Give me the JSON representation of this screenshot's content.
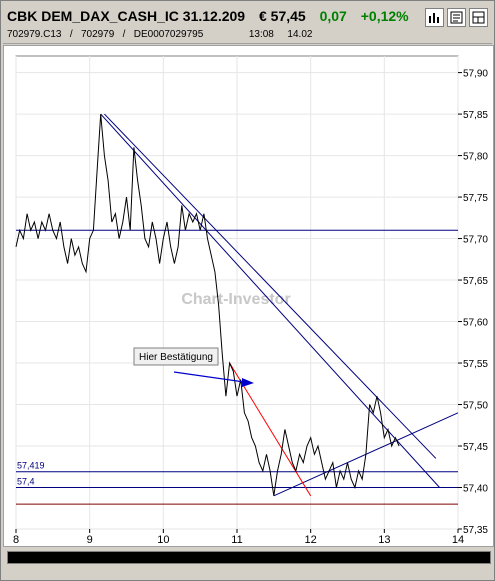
{
  "header": {
    "instrument": "CBK DEM_DAX_CASH_IC 31.12.209",
    "price": "€ 57,45",
    "change_abs": "0,07",
    "change_pct": "+0,12%",
    "codes": "702979.C13   /   702979   /   DE0007029795",
    "time1": "13:08",
    "time2": "14.02",
    "colors": {
      "positive": "#008000"
    }
  },
  "toolbar": {
    "icons": [
      "bar-chart-icon",
      "news-icon",
      "layout-icon"
    ]
  },
  "watermark": "Chart-Investor",
  "annotation": {
    "label": "Hier Bestätigung"
  },
  "chart_data": {
    "type": "line",
    "x_ticks": [
      "8",
      "9",
      "10",
      "11",
      "12",
      "13",
      "14"
    ],
    "y_ticks": [
      "57,90",
      "57,85",
      "57,80",
      "57,75",
      "57,70",
      "57,65",
      "57,60",
      "57,55",
      "57,50",
      "57,45",
      "57,40",
      "57,35"
    ],
    "xlim": [
      8,
      14
    ],
    "ylim": [
      57.35,
      57.92
    ],
    "level_labels": [
      {
        "text": "57,419",
        "y": 57.419
      },
      {
        "text": "57,4",
        "y": 57.4
      }
    ],
    "horizontal_lines": [
      {
        "y": 57.71,
        "color": "#000080"
      },
      {
        "y": 57.419,
        "color": "#000080"
      },
      {
        "y": 57.4,
        "color": "#000080"
      },
      {
        "y": 57.38,
        "color": "#800000"
      }
    ],
    "trend_lines": [
      {
        "x1": 9.15,
        "y1": 57.85,
        "x2": 13.75,
        "y2": 57.4,
        "color": "#000080"
      },
      {
        "x1": 9.2,
        "y1": 57.85,
        "x2": 13.7,
        "y2": 57.435,
        "color": "#000080"
      },
      {
        "x1": 11.5,
        "y1": 57.39,
        "x2": 14.0,
        "y2": 57.49,
        "color": "#000080"
      },
      {
        "x1": 10.9,
        "y1": 57.55,
        "x2": 12.0,
        "y2": 57.39,
        "color": "#ff0000"
      }
    ],
    "series": [
      {
        "values": [
          [
            8.0,
            57.69
          ],
          [
            8.05,
            57.71
          ],
          [
            8.1,
            57.7
          ],
          [
            8.15,
            57.73
          ],
          [
            8.2,
            57.71
          ],
          [
            8.25,
            57.72
          ],
          [
            8.3,
            57.7
          ],
          [
            8.35,
            57.72
          ],
          [
            8.4,
            57.71
          ],
          [
            8.45,
            57.73
          ],
          [
            8.5,
            57.71
          ],
          [
            8.55,
            57.7
          ],
          [
            8.6,
            57.72
          ],
          [
            8.65,
            57.69
          ],
          [
            8.7,
            57.67
          ],
          [
            8.75,
            57.7
          ],
          [
            8.8,
            57.68
          ],
          [
            8.85,
            57.69
          ],
          [
            8.9,
            57.67
          ],
          [
            8.95,
            57.66
          ],
          [
            9.0,
            57.7
          ],
          [
            9.05,
            57.71
          ],
          [
            9.1,
            57.78
          ],
          [
            9.15,
            57.85
          ],
          [
            9.2,
            57.8
          ],
          [
            9.25,
            57.77
          ],
          [
            9.3,
            57.72
          ],
          [
            9.35,
            57.73
          ],
          [
            9.4,
            57.7
          ],
          [
            9.45,
            57.72
          ],
          [
            9.5,
            57.75
          ],
          [
            9.55,
            57.71
          ],
          [
            9.6,
            57.81
          ],
          [
            9.65,
            57.77
          ],
          [
            9.7,
            57.74
          ],
          [
            9.75,
            57.7
          ],
          [
            9.8,
            57.69
          ],
          [
            9.85,
            57.72
          ],
          [
            9.9,
            57.7
          ],
          [
            9.95,
            57.67
          ],
          [
            10.0,
            57.7
          ],
          [
            10.05,
            57.72
          ],
          [
            10.1,
            57.69
          ],
          [
            10.15,
            57.67
          ],
          [
            10.2,
            57.69
          ],
          [
            10.25,
            57.74
          ],
          [
            10.3,
            57.71
          ],
          [
            10.35,
            57.73
          ],
          [
            10.4,
            57.72
          ],
          [
            10.45,
            57.73
          ],
          [
            10.5,
            57.71
          ],
          [
            10.55,
            57.73
          ],
          [
            10.6,
            57.7
          ],
          [
            10.65,
            57.68
          ],
          [
            10.7,
            57.66
          ],
          [
            10.75,
            57.62
          ],
          [
            10.8,
            57.56
          ],
          [
            10.85,
            57.51
          ],
          [
            10.9,
            57.55
          ],
          [
            10.95,
            57.54
          ],
          [
            11.0,
            57.51
          ],
          [
            11.05,
            57.53
          ],
          [
            11.1,
            57.49
          ],
          [
            11.15,
            57.48
          ],
          [
            11.2,
            57.46
          ],
          [
            11.25,
            57.45
          ],
          [
            11.3,
            57.43
          ],
          [
            11.35,
            57.42
          ],
          [
            11.4,
            57.44
          ],
          [
            11.45,
            57.42
          ],
          [
            11.5,
            57.39
          ],
          [
            11.55,
            57.42
          ],
          [
            11.6,
            57.44
          ],
          [
            11.65,
            57.47
          ],
          [
            11.7,
            57.45
          ],
          [
            11.75,
            57.43
          ],
          [
            11.8,
            57.42
          ],
          [
            11.85,
            57.44
          ],
          [
            11.9,
            57.43
          ],
          [
            11.95,
            57.45
          ],
          [
            12.0,
            57.46
          ],
          [
            12.05,
            57.44
          ],
          [
            12.1,
            57.45
          ],
          [
            12.15,
            57.43
          ],
          [
            12.2,
            57.41
          ],
          [
            12.25,
            57.42
          ],
          [
            12.3,
            57.43
          ],
          [
            12.35,
            57.4
          ],
          [
            12.4,
            57.42
          ],
          [
            12.45,
            57.41
          ],
          [
            12.5,
            57.43
          ],
          [
            12.55,
            57.41
          ],
          [
            12.6,
            57.4
          ],
          [
            12.65,
            57.42
          ],
          [
            12.7,
            57.41
          ],
          [
            12.75,
            57.44
          ],
          [
            12.8,
            57.5
          ],
          [
            12.85,
            57.49
          ],
          [
            12.9,
            57.51
          ],
          [
            12.95,
            57.49
          ],
          [
            13.0,
            57.46
          ],
          [
            13.05,
            57.47
          ],
          [
            13.1,
            57.45
          ],
          [
            13.15,
            57.46
          ],
          [
            13.2,
            57.45
          ]
        ]
      }
    ]
  }
}
